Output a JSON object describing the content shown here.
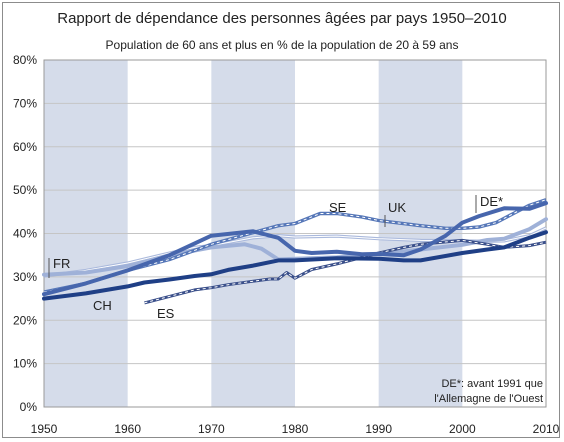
{
  "chart_data": {
    "type": "line",
    "title": "Rapport de dépendance des personnes âgées par pays 1950–2010",
    "subtitle": "Population de 60 ans et plus en % de la population de 20 à 59 ans",
    "xlim": [
      1950,
      2010
    ],
    "ylim": [
      0,
      80
    ],
    "x_ticks": [
      1950,
      1960,
      1970,
      1980,
      1990,
      2000,
      2010
    ],
    "y_ticks": [
      0,
      10,
      20,
      30,
      40,
      50,
      60,
      70,
      80
    ],
    "y_tick_format": "%",
    "grid": true,
    "shaded_periods": [
      [
        1950,
        1960
      ],
      [
        1970,
        1980
      ],
      [
        1990,
        2000
      ]
    ],
    "note": [
      "DE*: avant 1991 que",
      "l'Allemagne de l'Ouest"
    ],
    "colors": {
      "CH": "#1f3f86",
      "ES": "#3a4f8a",
      "FR": "#9fb1d8",
      "SE": "#5677b8",
      "UK": "#aab9dc",
      "DE": "#4766ad",
      "shade": "#d5dcea",
      "grid": "#c5c5c5"
    },
    "series": [
      {
        "name": "CH",
        "x": [
          1950,
          1955,
          1960,
          1962,
          1965,
          1968,
          1970,
          1972,
          1975,
          1978,
          1980,
          1985,
          1990,
          1993,
          1995,
          2000,
          2003,
          2005,
          2008,
          2010
        ],
        "values": [
          25,
          26.2,
          27.8,
          28.7,
          29.4,
          30.2,
          30.6,
          31.6,
          32.6,
          33.8,
          33.8,
          34.3,
          34.2,
          33.8,
          33.8,
          35.5,
          36.3,
          36.8,
          39,
          40.3
        ]
      },
      {
        "name": "ES",
        "x": [
          1962,
          1965,
          1968,
          1970,
          1972,
          1975,
          1977,
          1978,
          1979,
          1980,
          1982,
          1985,
          1988,
          1990,
          1993,
          1995,
          2000,
          2003,
          2005,
          2008,
          2010
        ],
        "values": [
          24,
          25.5,
          27,
          27.5,
          28.2,
          29,
          29.5,
          29.5,
          31,
          29.7,
          31.7,
          33,
          34.5,
          35.5,
          36.8,
          37.5,
          38.4,
          37.5,
          36.8,
          37.2,
          38
        ]
      },
      {
        "name": "FR",
        "x": [
          1950,
          1955,
          1960,
          1965,
          1970,
          1974,
          1975,
          1976,
          1978,
          1980,
          1985,
          1990,
          1995,
          2000,
          2003,
          2005,
          2008,
          2010
        ],
        "values": [
          30.5,
          31,
          32.5,
          35,
          36.8,
          37.5,
          37,
          36.5,
          34,
          34.2,
          34.5,
          35.2,
          36.3,
          37.4,
          38.5,
          38.8,
          41,
          43.3
        ]
      },
      {
        "name": "SE",
        "x": [
          1950,
          1955,
          1960,
          1965,
          1970,
          1975,
          1978,
          1980,
          1983,
          1985,
          1988,
          1990,
          1995,
          1998,
          2000,
          2002,
          2004,
          2006,
          2008,
          2010
        ],
        "values": [
          26.5,
          28.5,
          31.5,
          34,
          37.5,
          40.2,
          41.8,
          42.3,
          44.6,
          44.6,
          43.8,
          43,
          41.8,
          41.2,
          41.2,
          41.5,
          42.5,
          44.5,
          46.5,
          47.8
        ]
      },
      {
        "name": "UK",
        "x": [
          1950,
          1955,
          1960,
          1965,
          1968,
          1970,
          1975,
          1978,
          1980,
          1985,
          1990,
          1995,
          2000,
          2003,
          2005,
          2008,
          2010
        ],
        "values": [
          30.2,
          31.5,
          33.2,
          35.5,
          36.8,
          37.2,
          39,
          39.5,
          39.2,
          39.4,
          38.8,
          38.4,
          38.3,
          38.2,
          38.3,
          39.5,
          41.3
        ]
      },
      {
        "name": "DE",
        "x": [
          1950,
          1955,
          1960,
          1965,
          1970,
          1975,
          1978,
          1980,
          1982,
          1985,
          1988,
          1990,
          1993,
          1995,
          1998,
          2000,
          2002,
          2005,
          2008,
          2010
        ],
        "values": [
          26,
          28.5,
          31.5,
          35,
          39.5,
          40.5,
          39,
          36,
          35.5,
          35.8,
          35.2,
          35.3,
          35,
          36.3,
          39.5,
          42.5,
          44,
          45.8,
          45.7,
          47
        ]
      }
    ],
    "labels": [
      "CH",
      "ES",
      "FR",
      "SE",
      "UK",
      "DE*"
    ]
  }
}
